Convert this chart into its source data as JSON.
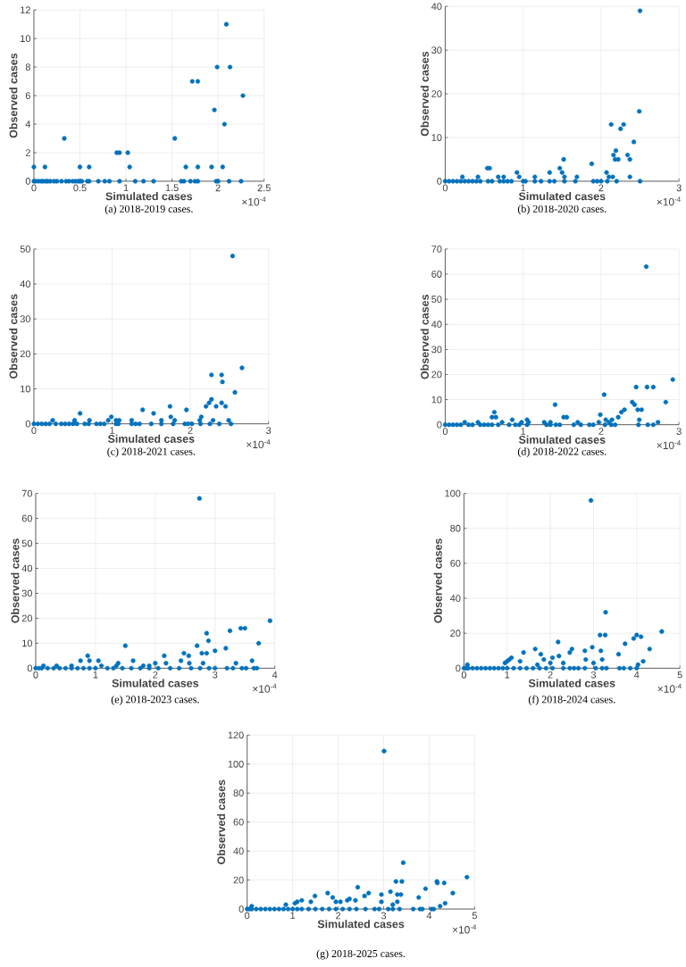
{
  "chart_data": [
    {
      "type": "scatter",
      "title": "(a) 2018-2019 cases.",
      "xlabel": "Simulated cases",
      "ylabel": "Observed cases",
      "annotations": [
        "×10$^{-4}$"
      ],
      "color": "#0072bd",
      "marker": "circle",
      "grid": true,
      "xlim": [
        0,
        2.5
      ],
      "ylim": [
        0,
        12
      ],
      "xticks": [
        0,
        0.5,
        1,
        1.5,
        2,
        2.5
      ],
      "yticks": [
        0,
        2,
        4,
        6,
        8,
        10,
        12
      ],
      "x": [
        0,
        0.02,
        0.05,
        0.08,
        0.1,
        0.13,
        0.15,
        0.18,
        0.22,
        0.25,
        0.3,
        0.35,
        0.38,
        0.42,
        0.45,
        0.48,
        0.5,
        0.52,
        0.58,
        0.6,
        0.7,
        0.77,
        0.82,
        0.93,
        1.1,
        1.19,
        1.3,
        1.6,
        1.63,
        1.7,
        1.75,
        1.78,
        1.98,
        2.0,
        2.12,
        2.25,
        0,
        0.12,
        0.33,
        0.5,
        0.6,
        0.9,
        0.93,
        1.02,
        1.04,
        1.53,
        1.65,
        1.72,
        1.78,
        1.78,
        1.93,
        1.96,
        1.99,
        2.05,
        2.07,
        2.09,
        2.13,
        2.27
      ],
      "values": [
        0,
        0,
        0,
        0,
        0,
        0,
        0,
        0,
        0,
        0,
        0,
        0,
        0,
        0,
        0,
        0,
        0,
        0,
        0,
        0,
        0,
        0,
        0,
        0,
        0,
        0,
        0,
        0,
        0,
        0,
        0,
        0,
        0,
        0,
        0,
        0,
        1,
        1,
        3,
        1,
        1,
        2,
        2,
        2,
        1,
        3,
        1,
        7,
        7,
        1,
        1,
        5,
        8,
        1,
        4,
        11,
        8,
        6
      ]
    },
    {
      "type": "scatter",
      "title": "(b) 2018-2020 cases.",
      "xlabel": "Simulated cases",
      "ylabel": "Observed cases",
      "annotations": [
        "×10$^{-4}$"
      ],
      "color": "#0072bd",
      "marker": "circle",
      "grid": true,
      "xlim": [
        0,
        3
      ],
      "ylim": [
        0,
        40
      ],
      "xticks": [
        0,
        1,
        2,
        3
      ],
      "yticks": [
        0,
        10,
        20,
        30,
        40
      ],
      "x": [
        0,
        0.05,
        0.1,
        0.15,
        0.2,
        0.25,
        0.3,
        0.35,
        0.4,
        0.45,
        0.55,
        0.6,
        0.7,
        0.75,
        0.8,
        0.85,
        1.0,
        1.03,
        1.15,
        1.23,
        1.34,
        1.4,
        1.53,
        1.67,
        1.9,
        1.95,
        2.0,
        2.08,
        2.2,
        2.5,
        0.22,
        0.42,
        0.54,
        0.57,
        0.68,
        0.75,
        0.92,
        0.95,
        1.15,
        1.34,
        1.47,
        1.5,
        1.52,
        1.53,
        1.69,
        1.88,
        2.07,
        2.1,
        2.13,
        2.15,
        2.16,
        2.18,
        2.19,
        2.22,
        2.25,
        2.29,
        2.34,
        2.37,
        2.37,
        2.42,
        2.49,
        2.5
      ],
      "values": [
        0,
        0,
        0,
        0,
        0,
        0,
        0,
        0,
        0,
        0,
        0,
        0,
        0,
        0,
        0,
        0,
        0,
        0,
        0,
        0,
        0,
        0,
        0,
        0,
        0,
        0,
        0,
        0,
        0,
        0,
        1,
        1,
        3,
        3,
        1,
        1,
        2,
        1,
        1,
        2,
        3,
        2,
        5,
        1,
        1,
        4,
        2,
        1,
        13,
        1,
        6,
        5,
        7,
        5,
        12,
        13,
        6,
        5,
        1,
        9,
        16,
        39
      ]
    },
    {
      "type": "scatter",
      "title": "(c) 2018-2021 cases.",
      "xlabel": "Simulated cases",
      "ylabel": "Observed cases",
      "annotations": [
        "×10$^{-4}$"
      ],
      "color": "#0072bd",
      "marker": "circle",
      "grid": true,
      "xlim": [
        0,
        3
      ],
      "ylim": [
        0,
        50
      ],
      "xticks": [
        0,
        1,
        2,
        3
      ],
      "yticks": [
        0,
        10,
        20,
        30,
        40,
        50
      ],
      "x": [
        0,
        0.05,
        0.1,
        0.15,
        0.2,
        0.28,
        0.35,
        0.4,
        0.45,
        0.5,
        0.55,
        0.65,
        0.7,
        0.8,
        0.85,
        0.9,
        1.05,
        1.08,
        1.25,
        1.3,
        1.35,
        1.5,
        1.63,
        1.78,
        1.93,
        1.97,
        2.02,
        2.13,
        2.25,
        2.37,
        2.52,
        0.24,
        0.52,
        0.59,
        0.71,
        0.95,
        0.99,
        1.05,
        1.09,
        1.25,
        1.39,
        1.53,
        1.63,
        1.74,
        1.75,
        1.8,
        1.95,
        2.12,
        2.14,
        2.2,
        2.24,
        2.27,
        2.27,
        2.29,
        2.33,
        2.4,
        2.4,
        2.41,
        2.45,
        2.49,
        2.54,
        2.57,
        2.66
      ],
      "values": [
        0,
        0,
        0,
        0,
        0,
        0,
        0,
        0,
        0,
        0,
        0,
        0,
        0,
        0,
        0,
        0,
        0,
        0,
        0,
        0,
        0,
        0,
        0,
        0,
        0,
        0,
        0,
        0,
        0,
        0,
        0,
        1,
        1,
        3,
        1,
        1,
        2,
        1,
        1,
        1,
        4,
        3,
        1,
        5,
        2,
        1,
        4,
        1,
        2,
        5,
        6,
        14,
        7,
        1,
        5,
        14,
        6,
        12,
        5,
        1,
        48,
        9,
        16
      ]
    },
    {
      "type": "scatter",
      "title": "(d) 2018-2022 cases.",
      "xlabel": "Simulated cases",
      "ylabel": "Observed cases",
      "annotations": [
        "×10$^{-4}$"
      ],
      "color": "#0072bd",
      "marker": "circle",
      "grid": true,
      "xlim": [
        0,
        3
      ],
      "ylim": [
        0,
        70
      ],
      "xticks": [
        0,
        1,
        2,
        3
      ],
      "yticks": [
        0,
        10,
        20,
        30,
        40,
        50,
        60,
        70
      ],
      "x": [
        0,
        0.05,
        0.1,
        0.15,
        0.2,
        0.3,
        0.35,
        0.45,
        0.5,
        0.55,
        0.6,
        0.68,
        0.82,
        0.9,
        0.95,
        1.05,
        1.3,
        1.35,
        1.42,
        1.47,
        1.65,
        1.74,
        1.85,
        1.9,
        2.05,
        2.13,
        2.18,
        2.48,
        2.6,
        2.67,
        0.25,
        0.42,
        0.6,
        0.63,
        0.65,
        0.73,
        0.86,
        0.98,
        1.05,
        1.07,
        1.27,
        1.35,
        1.41,
        1.52,
        1.56,
        1.7,
        1.97,
        1.99,
        2.04,
        2.06,
        2.1,
        2.14,
        2.22,
        2.26,
        2.3,
        2.4,
        2.43,
        2.45,
        2.47,
        2.49,
        2.52,
        2.58,
        2.59,
        2.67,
        2.73,
        2.83,
        2.92
      ],
      "values": [
        0,
        0,
        0,
        0,
        0,
        0,
        0,
        0,
        0,
        0,
        0,
        0,
        0,
        0,
        0,
        0,
        0,
        0,
        0,
        0,
        0,
        0,
        0,
        0,
        0,
        0,
        0,
        0,
        0,
        0,
        1,
        1,
        3,
        5,
        3,
        1,
        2,
        1,
        2,
        1,
        1,
        1,
        8,
        3,
        3,
        1,
        1,
        4,
        12,
        2,
        1,
        2,
        3,
        5,
        6,
        9,
        8,
        15,
        6,
        2,
        6,
        63,
        15,
        15,
        1,
        9,
        18
      ]
    },
    {
      "type": "scatter",
      "title": "(e) 2018-2023 cases.",
      "xlabel": "Simulated cases",
      "ylabel": "Observed cases",
      "annotations": [
        "×10$^{-4}$"
      ],
      "color": "#0072bd",
      "marker": "circle",
      "grid": true,
      "xlim": [
        0,
        4
      ],
      "ylim": [
        0,
        70
      ],
      "xticks": [
        0,
        1,
        2,
        3,
        4
      ],
      "yticks": [
        0,
        10,
        20,
        30,
        40,
        50,
        60,
        70
      ],
      "x": [
        0,
        0.05,
        0.1,
        0.2,
        0.3,
        0.4,
        0.5,
        0.6,
        0.7,
        0.8,
        0.9,
        1.0,
        1.2,
        1.3,
        1.45,
        1.6,
        1.75,
        1.9,
        2.05,
        2.25,
        2.4,
        2.6,
        2.75,
        2.9,
        3.0,
        3.2,
        3.3,
        3.45,
        3.52,
        3.65,
        3.7,
        0.13,
        0.35,
        0.6,
        0.75,
        0.87,
        0.9,
        1.05,
        1.1,
        1.35,
        1.38,
        1.5,
        1.63,
        1.8,
        1.9,
        2.0,
        2.15,
        2.18,
        2.43,
        2.48,
        2.56,
        2.57,
        2.7,
        2.74,
        2.78,
        2.8,
        2.86,
        2.86,
        2.89,
        3.0,
        3.18,
        3.25,
        3.35,
        3.43,
        3.5,
        3.62,
        3.73,
        3.92
      ],
      "values": [
        0,
        0,
        0,
        0,
        0,
        0,
        0,
        0,
        0,
        0,
        0,
        0,
        0,
        0,
        0,
        0,
        0,
        0,
        0,
        0,
        0,
        0,
        0,
        0,
        0,
        0,
        0,
        0,
        0,
        0,
        0,
        1,
        1,
        1,
        3,
        5,
        3,
        3,
        1,
        1,
        2,
        9,
        3,
        1,
        1,
        2,
        5,
        2,
        3,
        6,
        5,
        2,
        9,
        68,
        6,
        2,
        14,
        6,
        11,
        7,
        8,
        15,
        2,
        16,
        16,
        3,
        10,
        19
      ]
    },
    {
      "type": "scatter",
      "title": "(f) 2018-2024 cases.",
      "xlabel": "Simulated cases",
      "ylabel": "Observed cases",
      "annotations": [
        "×10$^{-4}$"
      ],
      "color": "#0072bd",
      "marker": "circle",
      "grid": true,
      "xlim": [
        0,
        5
      ],
      "ylim": [
        0,
        100
      ],
      "xticks": [
        0,
        1,
        2,
        3,
        4,
        5
      ],
      "yticks": [
        0,
        20,
        40,
        60,
        80,
        100
      ],
      "x": [
        0,
        0.05,
        0.1,
        0.2,
        0.3,
        0.4,
        0.5,
        0.6,
        0.7,
        0.8,
        0.9,
        1.0,
        1.15,
        1.3,
        1.45,
        1.6,
        1.75,
        1.9,
        2.05,
        2.3,
        2.45,
        2.55,
        2.65,
        2.8,
        3.05,
        3.2,
        3.3,
        3.6,
        3.7,
        3.85,
        4.0,
        0.08,
        0.95,
        1.0,
        1.05,
        1.1,
        1.3,
        1.38,
        1.65,
        1.7,
        1.78,
        1.85,
        2.0,
        2.05,
        2.18,
        2.2,
        2.3,
        2.45,
        2.5,
        2.8,
        2.82,
        2.94,
        2.97,
        3.0,
        3.15,
        3.17,
        3.2,
        3.27,
        3.28,
        3.58,
        3.73,
        3.93,
        4.0,
        4.03,
        4.1,
        4.15,
        4.3,
        4.58
      ],
      "values": [
        0,
        0,
        0,
        0,
        0,
        0,
        0,
        0,
        0,
        0,
        0,
        0,
        0,
        0,
        0,
        0,
        0,
        0,
        0,
        0,
        0,
        0,
        0,
        0,
        0,
        0,
        0,
        0,
        0,
        0,
        0,
        2,
        3,
        4,
        5,
        6,
        4,
        9,
        11,
        2,
        8,
        5,
        3,
        6,
        15,
        7,
        3,
        9,
        11,
        10,
        5,
        96,
        12,
        3,
        19,
        10,
        5,
        19,
        32,
        8,
        14,
        17,
        19,
        2,
        18,
        4,
        11,
        21
      ]
    },
    {
      "type": "scatter",
      "title": "(g) 2018-2025 cases.",
      "xlabel": "Simulated cases",
      "ylabel": "Observed cases",
      "annotations": [
        "×10$^{-4}$"
      ],
      "color": "#0072bd",
      "marker": "circle",
      "grid": true,
      "xlim": [
        0,
        5
      ],
      "ylim": [
        0,
        120
      ],
      "xticks": [
        0,
        1,
        2,
        3,
        4,
        5
      ],
      "yticks": [
        0,
        20,
        40,
        60,
        80,
        100,
        120
      ],
      "x": [
        0,
        0.05,
        0.1,
        0.2,
        0.3,
        0.4,
        0.5,
        0.6,
        0.7,
        0.8,
        0.9,
        1.0,
        1.1,
        1.2,
        1.35,
        1.5,
        1.65,
        1.8,
        1.95,
        2.1,
        2.25,
        2.4,
        2.6,
        2.8,
        2.9,
        3.1,
        3.2,
        3.35,
        3.65,
        3.8,
        3.85,
        4.05,
        4.1,
        0.1,
        0.85,
        1.05,
        1.1,
        1.2,
        1.4,
        1.49,
        1.77,
        1.88,
        1.95,
        2.05,
        2.2,
        2.25,
        2.38,
        2.43,
        2.58,
        2.67,
        2.95,
        2.95,
        3.01,
        3.15,
        3.2,
        3.27,
        3.3,
        3.3,
        3.38,
        3.4,
        3.43,
        3.77,
        3.92,
        4.17,
        4.18,
        4.24,
        4.33,
        4.35,
        4.52,
        4.83
      ],
      "values": [
        0,
        0,
        0,
        0,
        0,
        0,
        0,
        0,
        0,
        0,
        0,
        0,
        0,
        0,
        0,
        0,
        0,
        0,
        0,
        0,
        0,
        0,
        0,
        0,
        0,
        0,
        0,
        0,
        0,
        0,
        0,
        0,
        0,
        2,
        3,
        4,
        5,
        6,
        5,
        9,
        11,
        8,
        5,
        5,
        6,
        7,
        6,
        15,
        9,
        11,
        10,
        5,
        109,
        12,
        3,
        19,
        10,
        5,
        10,
        19,
        32,
        8,
        14,
        19,
        18,
        2,
        18,
        4,
        11,
        22
      ]
    }
  ]
}
